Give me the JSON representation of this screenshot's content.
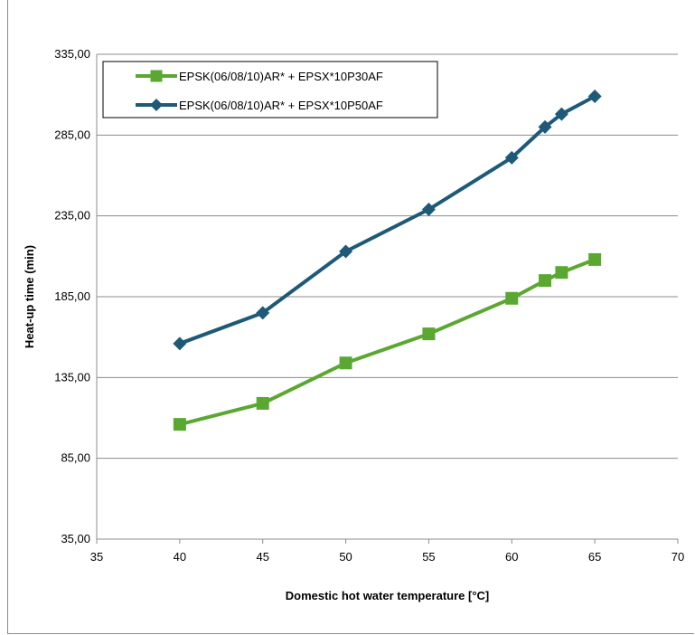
{
  "chart_data": {
    "type": "line",
    "xlabel": "Domestic hot water temperature [°C]",
    "ylabel": "Heat-up time (min)",
    "xlim": [
      35,
      70
    ],
    "ylim": [
      35,
      335
    ],
    "xticks": [
      "35",
      "40",
      "45",
      "50",
      "55",
      "60",
      "65",
      "70"
    ],
    "yticks": [
      "35,00",
      "85,00",
      "135,00",
      "185,00",
      "235,00",
      "285,00",
      "335,00"
    ],
    "grid": "horizontal",
    "legend_position": "top-left",
    "series": [
      {
        "name": "EPSK(06/08/10)AR* + EPSX*10P30AF",
        "marker": "square",
        "color": "#5aa832",
        "x": [
          40,
          45,
          50,
          55,
          60,
          62,
          63,
          65
        ],
        "y": [
          106,
          119,
          144,
          162,
          184,
          195,
          200,
          208
        ]
      },
      {
        "name": "EPSK(06/08/10)AR* + EPSX*10P50AF",
        "marker": "diamond",
        "color": "#1e5a78",
        "x": [
          40,
          45,
          50,
          55,
          60,
          62,
          63,
          65
        ],
        "y": [
          156,
          175,
          213,
          239,
          271,
          290,
          298,
          309
        ]
      }
    ]
  }
}
